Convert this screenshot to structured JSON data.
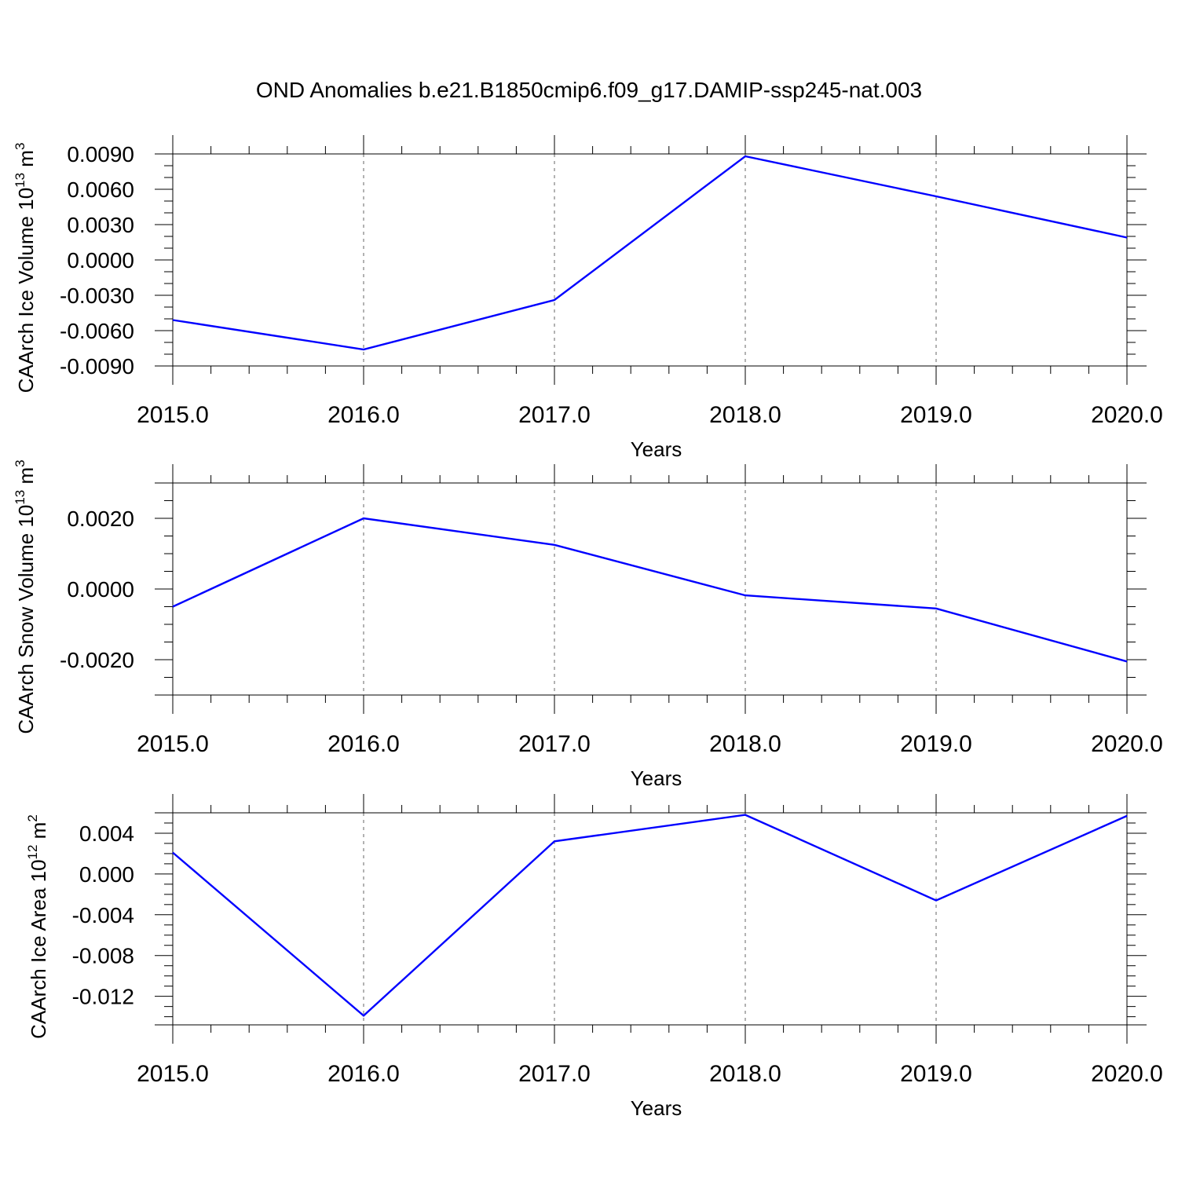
{
  "figure_title": "OND Anomalies b.e21.B1850cmip6.f09_g17.DAMIP-ssp245-nat.003",
  "colors": {
    "line": "#0000ff",
    "axis": "#000000",
    "grid": "#555555"
  },
  "chart_data": [
    {
      "type": "line",
      "x": [
        2015.0,
        2016.0,
        2017.0,
        2018.0,
        2019.0,
        2020.0
      ],
      "series": [
        {
          "values": [
            -0.0051,
            -0.0076,
            -0.0034,
            0.0088,
            0.0054,
            0.0019
          ]
        }
      ],
      "xlabel": "Years",
      "ylabel": {
        "text": "CAArch Ice Volume 10",
        "sup": "13",
        "unit": " m",
        "unit_sup": "3"
      },
      "xlim": [
        2015.0,
        2020.0
      ],
      "ylim": [
        -0.009,
        0.009
      ],
      "xtick_values": [
        2015.0,
        2016.0,
        2017.0,
        2018.0,
        2019.0,
        2020.0
      ],
      "xtick_labels": [
        "2015.0",
        "2016.0",
        "2017.0",
        "2018.0",
        "2019.0",
        "2020.0"
      ],
      "ytick_values": [
        0.009,
        0.006,
        0.003,
        0.0,
        -0.003,
        -0.006,
        -0.009
      ],
      "ytick_labels": [
        "0.0090",
        "0.0060",
        "0.0030",
        "0.0000",
        "-0.0030",
        "-0.0060",
        "-0.0090"
      ],
      "y_minor_step": 0.001,
      "x_minor_step": 0.2,
      "grid": "vertical dashed at major x ticks"
    },
    {
      "type": "line",
      "x": [
        2015.0,
        2016.0,
        2017.0,
        2018.0,
        2019.0,
        2020.0
      ],
      "series": [
        {
          "values": [
            -0.0005,
            0.002,
            0.00125,
            -0.00018,
            -0.00055,
            -0.00205
          ]
        }
      ],
      "xlabel": "Years",
      "ylabel": {
        "text": "CAArch Snow Volume 10",
        "sup": "13",
        "unit": " m",
        "unit_sup": "3"
      },
      "xlim": [
        2015.0,
        2020.0
      ],
      "ylim": [
        -0.003,
        0.003
      ],
      "xtick_values": [
        2015.0,
        2016.0,
        2017.0,
        2018.0,
        2019.0,
        2020.0
      ],
      "xtick_labels": [
        "2015.0",
        "2016.0",
        "2017.0",
        "2018.0",
        "2019.0",
        "2020.0"
      ],
      "ytick_values": [
        0.002,
        0.0,
        -0.002
      ],
      "ytick_labels": [
        "0.0020",
        "0.0000",
        "-0.0020"
      ],
      "y_minor_step": 0.0005,
      "x_minor_step": 0.2,
      "grid": "vertical dashed at major x ticks"
    },
    {
      "type": "line",
      "x": [
        2015.0,
        2016.0,
        2017.0,
        2018.0,
        2019.0,
        2020.0
      ],
      "series": [
        {
          "values": [
            0.0021,
            -0.0139,
            0.0032,
            0.0058,
            -0.0026,
            0.0057
          ]
        }
      ],
      "xlabel": "Years",
      "ylabel": {
        "text": "CAArch Ice Area 10",
        "sup": "12",
        "unit": " m",
        "unit_sup": "2"
      },
      "xlim": [
        2015.0,
        2020.0
      ],
      "ylim": [
        -0.0148,
        0.006
      ],
      "xtick_values": [
        2015.0,
        2016.0,
        2017.0,
        2018.0,
        2019.0,
        2020.0
      ],
      "xtick_labels": [
        "2015.0",
        "2016.0",
        "2017.0",
        "2018.0",
        "2019.0",
        "2020.0"
      ],
      "ytick_values": [
        0.004,
        0.0,
        -0.004,
        -0.008,
        -0.012
      ],
      "ytick_labels": [
        "0.004",
        "0.000",
        "-0.004",
        "-0.008",
        "-0.012"
      ],
      "y_minor_step": 0.001,
      "x_minor_step": 0.2,
      "grid": "vertical dashed at major x ticks"
    }
  ]
}
